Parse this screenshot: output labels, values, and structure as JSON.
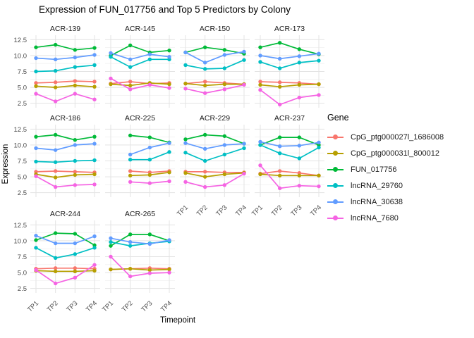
{
  "title": "Expression of FUN_017756 and Top 5 Predictors by Colony",
  "axes": {
    "x_label": "Timepoint",
    "y_label": "Expression",
    "x_ticks": [
      "TP1",
      "TP2",
      "TP3",
      "TP4"
    ],
    "y_ticks": [
      2.5,
      5.0,
      7.5,
      10.0,
      12.5
    ],
    "y_tick_labels": [
      "2.5",
      "5.0",
      "7.5",
      "10.0",
      "12.5"
    ],
    "y_range": [
      1.8,
      13.2
    ]
  },
  "legend": {
    "title": "Gene",
    "entries": [
      {
        "label": "CpG_ptg000027l_1686008",
        "color": "#F8766D"
      },
      {
        "label": "CpG_ptg000031l_800012",
        "color": "#B79F00"
      },
      {
        "label": "FUN_017756",
        "color": "#00BA38"
      },
      {
        "label": "lncRNA_29760",
        "color": "#00BFC4"
      },
      {
        "label": "lncRNA_30638",
        "color": "#619CFF"
      },
      {
        "label": "lncRNA_7680",
        "color": "#F564E3"
      }
    ]
  },
  "chart_data": {
    "type": "line",
    "facet_variable": "Colony",
    "x": [
      "TP1",
      "TP2",
      "TP3",
      "TP4"
    ],
    "series_names": [
      "CpG_ptg000027l_1686008",
      "CpG_ptg000031l_800012",
      "FUN_017756",
      "lncRNA_29760",
      "lncRNA_30638",
      "lncRNA_7680"
    ],
    "series_colors": [
      "#F8766D",
      "#B79F00",
      "#00BA38",
      "#00BFC4",
      "#619CFF",
      "#F564E3"
    ],
    "title": "Expression of FUN_017756 and Top 5 Predictors by Colony",
    "xlabel": "Timepoint",
    "ylabel": "Expression",
    "ylim": [
      1.8,
      13.2
    ],
    "grid": true,
    "legend_position": "right",
    "facets": [
      {
        "name": "ACR-139",
        "values": [
          [
            5.7,
            5.8,
            6.0,
            5.9
          ],
          [
            5.2,
            5.0,
            5.3,
            5.1
          ],
          [
            11.3,
            11.7,
            10.9,
            11.2
          ],
          [
            7.5,
            7.6,
            8.2,
            8.5
          ],
          [
            9.6,
            9.4,
            9.7,
            10.1
          ],
          [
            4.0,
            2.8,
            4.0,
            3.1
          ]
        ]
      },
      {
        "name": "ACR-145",
        "values": [
          [
            5.6,
            5.9,
            5.6,
            5.7
          ],
          [
            5.5,
            5.3,
            5.7,
            5.5
          ],
          [
            10.0,
            11.6,
            10.5,
            10.8
          ],
          [
            9.8,
            8.2,
            9.4,
            9.4
          ],
          [
            10.4,
            9.4,
            10.2,
            9.8
          ],
          [
            6.4,
            4.7,
            5.4,
            4.9
          ]
        ]
      },
      {
        "name": "ACR-150",
        "values": [
          [
            5.6,
            5.9,
            5.7,
            5.5
          ],
          [
            5.6,
            5.3,
            5.5,
            5.5
          ],
          [
            10.5,
            11.3,
            10.9,
            10.3
          ],
          [
            8.5,
            7.9,
            8.0,
            9.3
          ],
          [
            10.5,
            8.9,
            10.1,
            10.6
          ],
          [
            4.8,
            4.1,
            4.7,
            5.4
          ]
        ]
      },
      {
        "name": "ACR-173",
        "values": [
          [
            5.9,
            5.8,
            5.7,
            5.5
          ],
          [
            5.4,
            5.1,
            5.4,
            5.5
          ],
          [
            11.3,
            12.0,
            11.0,
            10.2
          ],
          [
            9.0,
            8.0,
            8.9,
            9.2
          ],
          [
            10.0,
            9.5,
            9.9,
            10.3
          ],
          [
            4.6,
            2.3,
            3.4,
            3.8
          ]
        ]
      },
      {
        "name": "ACR-186",
        "values": [
          [
            5.8,
            5.9,
            5.8,
            5.7
          ],
          [
            5.4,
            4.9,
            5.3,
            5.4
          ],
          [
            11.3,
            11.6,
            10.8,
            11.3
          ],
          [
            7.4,
            7.3,
            7.5,
            7.6
          ],
          [
            9.5,
            9.2,
            10.0,
            10.2
          ],
          [
            5.1,
            3.4,
            3.7,
            3.8
          ]
        ]
      },
      {
        "name": "ACR-225",
        "values": [
          [
            null,
            5.9,
            5.7,
            5.9
          ],
          [
            null,
            5.2,
            5.3,
            5.7
          ],
          [
            null,
            11.5,
            11.2,
            10.4
          ],
          [
            null,
            7.7,
            7.7,
            8.9
          ],
          [
            null,
            8.5,
            9.6,
            10.3
          ],
          [
            null,
            4.2,
            4.0,
            4.3
          ]
        ]
      },
      {
        "name": "ACR-229",
        "values": [
          [
            5.8,
            5.8,
            5.7,
            5.7
          ],
          [
            5.6,
            5.0,
            5.4,
            5.6
          ],
          [
            10.9,
            11.6,
            11.4,
            10.2
          ],
          [
            8.8,
            7.5,
            8.5,
            9.5
          ],
          [
            10.3,
            9.4,
            10.0,
            10.2
          ],
          [
            4.2,
            3.4,
            3.7,
            5.5
          ]
        ]
      },
      {
        "name": "ACR-237",
        "values": [
          [
            5.5,
            5.9,
            5.6,
            5.2
          ],
          [
            5.4,
            5.2,
            5.2,
            5.2
          ],
          [
            10.0,
            11.2,
            11.2,
            10.0
          ],
          [
            10.0,
            8.7,
            7.9,
            9.6
          ],
          [
            10.5,
            9.8,
            9.9,
            10.4
          ],
          [
            6.8,
            3.2,
            3.6,
            3.5
          ]
        ]
      },
      {
        "name": "ACR-244",
        "values": [
          [
            5.6,
            5.7,
            5.7,
            5.6
          ],
          [
            5.3,
            5.2,
            5.2,
            5.3
          ],
          [
            10.1,
            11.2,
            11.1,
            9.3
          ],
          [
            8.9,
            7.3,
            7.9,
            8.9
          ],
          [
            10.8,
            9.6,
            9.6,
            10.7
          ],
          [
            5.4,
            3.3,
            4.2,
            6.2
          ]
        ]
      },
      {
        "name": "ACR-265",
        "values": [
          [
            5.5,
            5.6,
            5.7,
            5.6
          ],
          [
            5.5,
            5.6,
            5.4,
            5.5
          ],
          [
            9.2,
            11.0,
            11.0,
            10.0
          ],
          [
            9.8,
            9.2,
            9.6,
            9.9
          ],
          [
            10.4,
            9.8,
            9.5,
            10.1
          ],
          [
            7.5,
            4.4,
            4.9,
            5.0
          ]
        ]
      }
    ]
  }
}
